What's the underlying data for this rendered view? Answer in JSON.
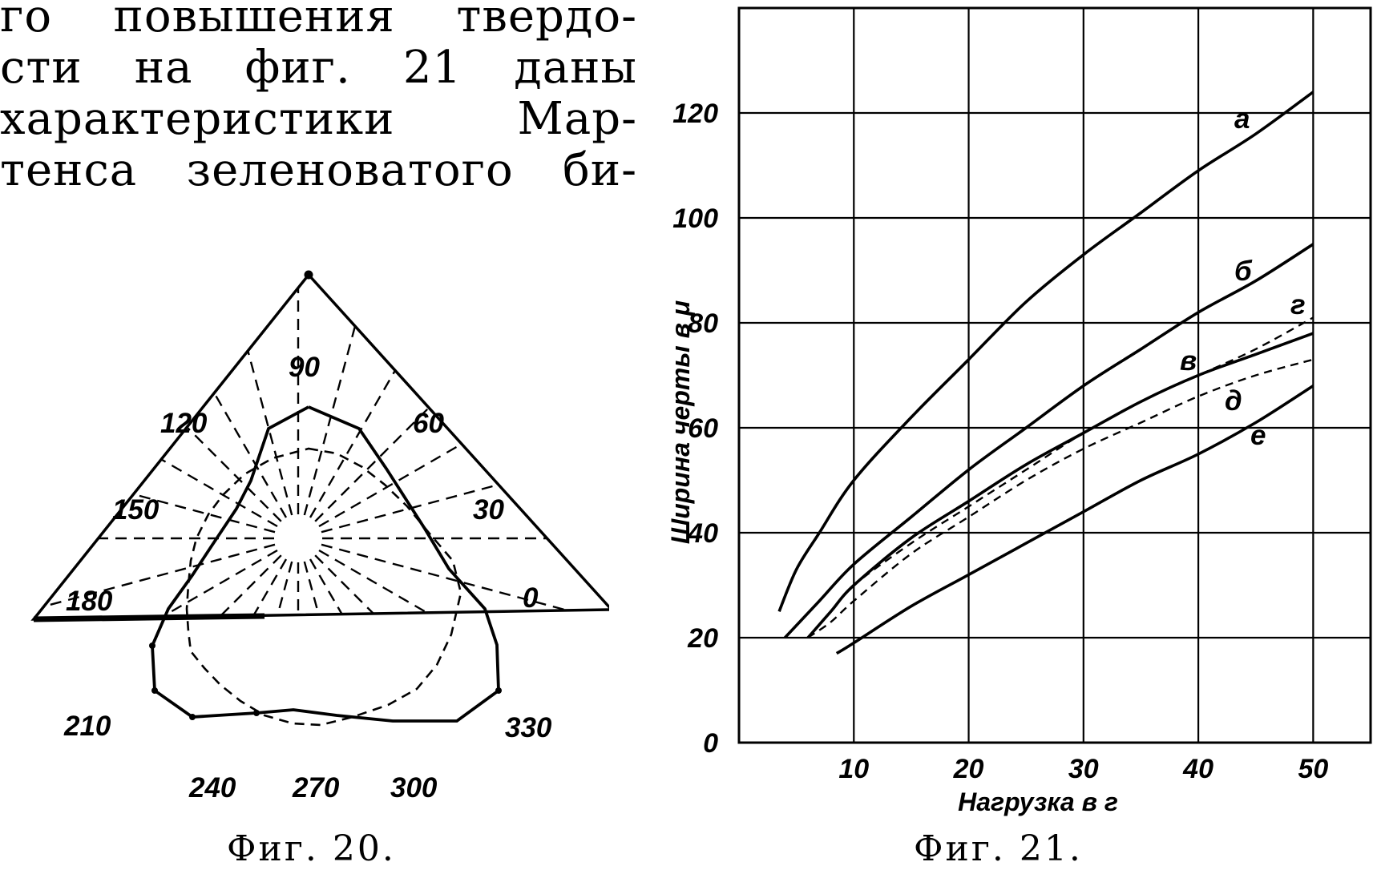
{
  "text": {
    "lines": [
      "го повышения твердо-",
      "сти на фиг. 21 даны",
      "характеристики Мар-",
      "тенса зеленоватого би-"
    ]
  },
  "figure20": {
    "caption": "Фиг. 20.",
    "angle_labels": [
      "90",
      "60",
      "120",
      "150",
      "30",
      "180",
      "0",
      "210",
      "330",
      "240",
      "270",
      "300"
    ]
  },
  "figure21": {
    "caption": "Фиг. 21.",
    "chart_data": {
      "type": "line",
      "xlabel": "Нагрузка в г",
      "ylabel": "Ширина черты в μ",
      "xlim": [
        0,
        55
      ],
      "ylim": [
        0,
        140
      ],
      "x_ticks": [
        "10",
        "20",
        "30",
        "40",
        "50"
      ],
      "y_ticks": [
        "0",
        "20",
        "40",
        "60",
        "80",
        "100",
        "120"
      ],
      "grid": true,
      "series": [
        {
          "name": "а",
          "style": "solid",
          "points": [
            [
              3.5,
              25
            ],
            [
              5,
              33
            ],
            [
              7,
              40
            ],
            [
              10,
              50
            ],
            [
              15,
              62
            ],
            [
              20,
              73
            ],
            [
              25,
              84
            ],
            [
              30,
              93
            ],
            [
              35,
              101
            ],
            [
              40,
              109
            ],
            [
              45,
              116
            ],
            [
              50,
              124
            ]
          ]
        },
        {
          "name": "б",
          "style": "solid",
          "points": [
            [
              4,
              20
            ],
            [
              7,
              27
            ],
            [
              10,
              34
            ],
            [
              15,
              43
            ],
            [
              20,
              52
            ],
            [
              25,
              60
            ],
            [
              30,
              68
            ],
            [
              35,
              75
            ],
            [
              40,
              82
            ],
            [
              45,
              88
            ],
            [
              50,
              95
            ]
          ]
        },
        {
          "name": "в",
          "style": "solid",
          "points": [
            [
              6,
              20
            ],
            [
              8,
              25
            ],
            [
              10,
              30
            ],
            [
              15,
              39
            ],
            [
              20,
              46
            ],
            [
              25,
              53
            ],
            [
              30,
              59
            ],
            [
              35,
              65
            ],
            [
              40,
              70
            ],
            [
              45,
              74
            ],
            [
              50,
              78
            ]
          ]
        },
        {
          "name": "г",
          "style": "dashed",
          "points": [
            [
              6,
              20
            ],
            [
              8,
              25
            ],
            [
              10,
              30
            ],
            [
              15,
              38
            ],
            [
              20,
              45
            ],
            [
              25,
              52
            ],
            [
              30,
              59
            ],
            [
              35,
              65
            ],
            [
              40,
              70
            ],
            [
              45,
              75
            ],
            [
              50,
              81
            ]
          ]
        },
        {
          "name": "д",
          "style": "dashed",
          "points": [
            [
              6,
              20
            ],
            [
              8,
              23
            ],
            [
              10,
              27
            ],
            [
              15,
              36
            ],
            [
              20,
              43
            ],
            [
              25,
              50
            ],
            [
              30,
              56
            ],
            [
              35,
              61
            ],
            [
              40,
              66
            ],
            [
              45,
              70
            ],
            [
              50,
              73
            ]
          ]
        },
        {
          "name": "е",
          "style": "solid",
          "points": [
            [
              8.5,
              17
            ],
            [
              10,
              19
            ],
            [
              15,
              26
            ],
            [
              20,
              32
            ],
            [
              25,
              38
            ],
            [
              30,
              44
            ],
            [
              35,
              50
            ],
            [
              40,
              55
            ],
            [
              45,
              61
            ],
            [
              50,
              68
            ]
          ]
        }
      ]
    }
  }
}
